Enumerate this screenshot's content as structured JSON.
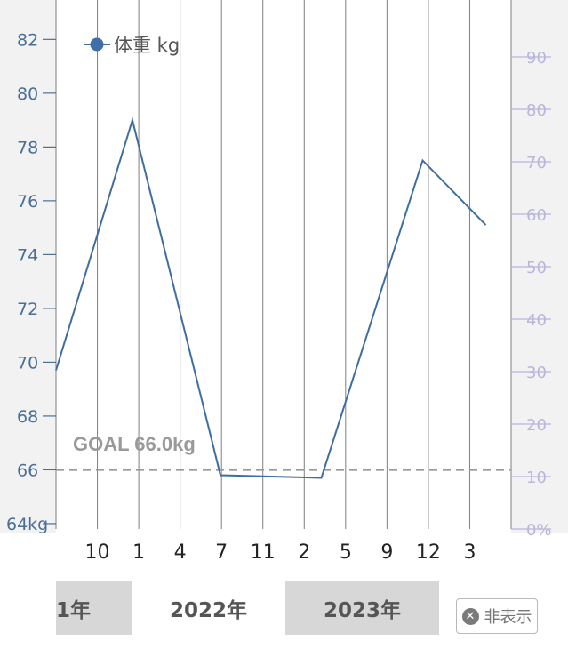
{
  "chart_data": {
    "type": "line",
    "series": [
      {
        "name": "体重 kg",
        "x": [
          "2021-07",
          "2022-01",
          "2022-08",
          "2023-04",
          "2023-12",
          "2024-05"
        ],
        "values": [
          69.7,
          79.0,
          65.8,
          65.7,
          77.5,
          75.1
        ]
      }
    ],
    "x_tick_labels": [
      "10",
      "1",
      "4",
      "7",
      "11",
      "2",
      "5",
      "9",
      "12",
      "3"
    ],
    "y_left": {
      "ticks": [
        "64kg",
        "66",
        "68",
        "70",
        "72",
        "74",
        "76",
        "78",
        "80",
        "82"
      ],
      "range": [
        63.8,
        83.3
      ]
    },
    "y_right": {
      "ticks": [
        "0%",
        "10",
        "20",
        "30",
        "40",
        "50",
        "60",
        "70",
        "80",
        "90"
      ],
      "range": [
        0,
        100
      ]
    },
    "goal": {
      "label": "GOAL 66.0kg",
      "value": 66.0
    },
    "grid": true,
    "legend_position": "top-left"
  },
  "year_bar": [
    {
      "label": "1年",
      "shaded": true
    },
    {
      "label": "2022年",
      "shaded": false
    },
    {
      "label": "2023年",
      "shaded": true
    }
  ],
  "hide_button": {
    "label": "非表示",
    "icon": "close-circle-icon"
  },
  "colors": {
    "line": "#3f6e9c",
    "marker": "#3f6ea8",
    "left_axis": "#4a6f96",
    "right_axis": "#b9b6dc",
    "goal": "#999999",
    "shade": "#d7d7d7"
  }
}
